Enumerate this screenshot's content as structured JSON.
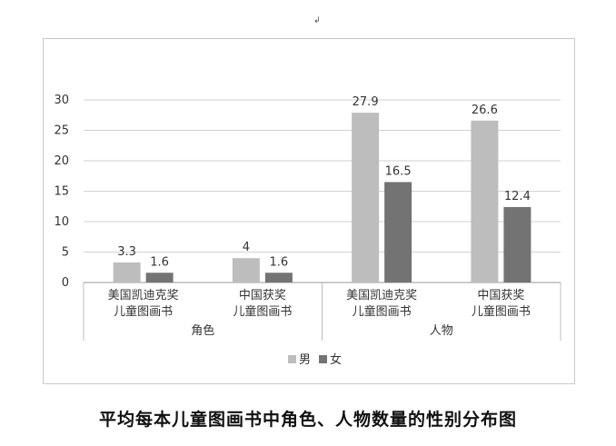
{
  "corner_mark": "↲",
  "caption": "平均每本儿童图画书中角色、人物数量的性别分布图",
  "chart_data": {
    "type": "bar",
    "title": "",
    "xlabel": "",
    "ylabel": "",
    "ylim": [
      0,
      30
    ],
    "yticks": [
      0,
      5,
      10,
      15,
      20,
      25,
      30
    ],
    "grid": true,
    "legend_position": "bottom",
    "groups": [
      {
        "label": "角色",
        "categories": [
          {
            "label_lines": [
              "美国凯迪克奖",
              "儿童图画书"
            ]
          },
          {
            "label_lines": [
              "中国获奖",
              "儿童图画书"
            ]
          }
        ]
      },
      {
        "label": "人物",
        "categories": [
          {
            "label_lines": [
              "美国凯迪克奖",
              "儿童图画书"
            ]
          },
          {
            "label_lines": [
              "中国获奖",
              "儿童图画书"
            ]
          }
        ]
      }
    ],
    "series": [
      {
        "name": "男",
        "color": "#bdbdbd",
        "values": [
          3.3,
          4,
          27.9,
          26.6
        ],
        "labels": [
          "3.3",
          "4",
          "27.9",
          "26.6"
        ]
      },
      {
        "name": "女",
        "color": "#737373",
        "values": [
          1.6,
          1.6,
          16.5,
          12.4
        ],
        "labels": [
          "1.6",
          "1.6",
          "16.5",
          "12.4"
        ]
      }
    ]
  }
}
